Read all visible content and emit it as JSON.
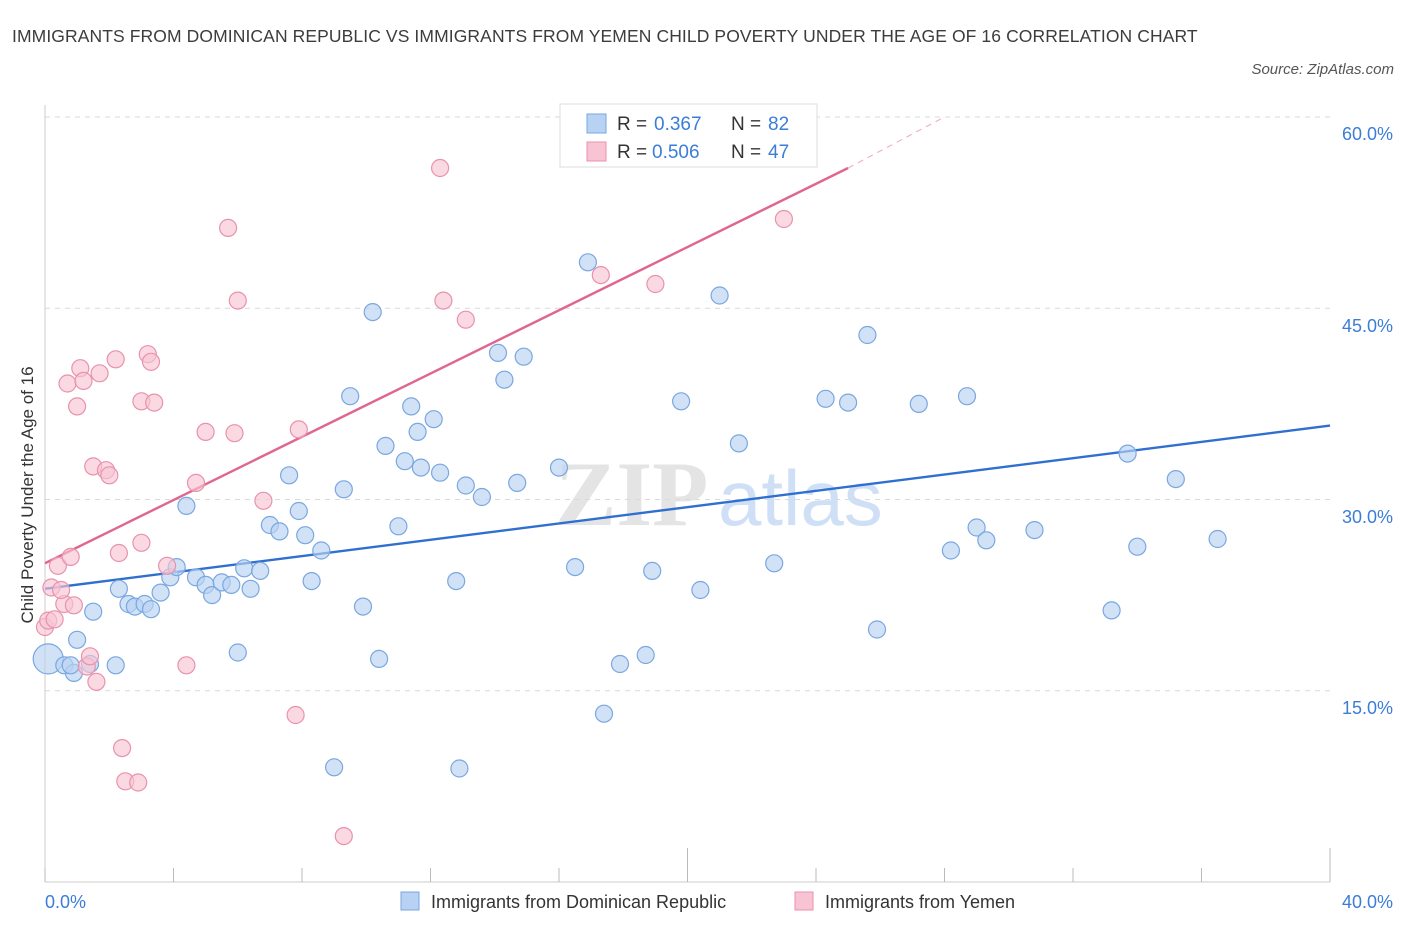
{
  "title": "IMMIGRANTS FROM DOMINICAN REPUBLIC VS IMMIGRANTS FROM YEMEN CHILD POVERTY UNDER THE AGE OF 16 CORRELATION CHART",
  "source": "Source: ZipAtlas.com",
  "watermark": {
    "zip": "ZIP",
    "atlas": "atlas"
  },
  "colors": {
    "blue_fill": "#b8d2f3",
    "blue_stroke": "#7aa7e0",
    "blue_line": "#2f6fd0",
    "pink_fill": "#f8c4d3",
    "pink_stroke": "#e892ad",
    "pink_line": "#e06690",
    "grid": "#d9d9d9",
    "axis_text": "#3b7dd8"
  },
  "legend": {
    "series": [
      {
        "r_label": "R =",
        "r_value": "0.367",
        "n_label": "N =",
        "n_value": "82"
      },
      {
        "r_label": "R =",
        "r_value": "0.506",
        "n_label": "N =",
        "n_value": "47"
      }
    ]
  },
  "chart_data": {
    "type": "scatter",
    "title": "IMMIGRANTS FROM DOMINICAN REPUBLIC VS IMMIGRANTS FROM YEMEN CHILD POVERTY UNDER THE AGE OF 16 CORRELATION CHART",
    "xlabel": "",
    "ylabel": "Child Poverty Under the Age of 16",
    "xlim": [
      0,
      40
    ],
    "ylim": [
      0,
      60
    ],
    "x_tick_labels": [
      "0.0%",
      "40.0%"
    ],
    "y_ticks": [
      15,
      30,
      45,
      60
    ],
    "y_tick_labels": [
      "15.0%",
      "30.0%",
      "45.0%",
      "60.0%"
    ],
    "legend_position": "top-center",
    "series": [
      {
        "name": "Immigrants from Dominican Republic",
        "R": 0.367,
        "N": 82,
        "trend": {
          "x": [
            0,
            40
          ],
          "y": [
            23.0,
            35.8
          ]
        },
        "points": [
          [
            0.1,
            17.5
          ],
          [
            0.6,
            17.0
          ],
          [
            0.9,
            16.4
          ],
          [
            1.0,
            19.0
          ],
          [
            1.4,
            17.1
          ],
          [
            2.2,
            17.0
          ],
          [
            1.5,
            21.2
          ],
          [
            2.3,
            23.0
          ],
          [
            2.6,
            21.8
          ],
          [
            2.8,
            21.6
          ],
          [
            3.1,
            21.8
          ],
          [
            3.3,
            21.4
          ],
          [
            3.6,
            22.7
          ],
          [
            3.9,
            23.9
          ],
          [
            4.1,
            24.7
          ],
          [
            4.4,
            29.5
          ],
          [
            4.7,
            23.9
          ],
          [
            5.0,
            23.3
          ],
          [
            5.2,
            22.5
          ],
          [
            5.5,
            23.5
          ],
          [
            5.8,
            23.3
          ],
          [
            6.0,
            18.0
          ],
          [
            6.2,
            24.6
          ],
          [
            6.4,
            23.0
          ],
          [
            6.7,
            24.4
          ],
          [
            7.0,
            28.0
          ],
          [
            7.3,
            27.5
          ],
          [
            7.6,
            31.9
          ],
          [
            7.9,
            29.1
          ],
          [
            8.1,
            27.2
          ],
          [
            8.3,
            23.6
          ],
          [
            8.6,
            26.0
          ],
          [
            9.0,
            9.0
          ],
          [
            9.3,
            30.8
          ],
          [
            9.5,
            38.1
          ],
          [
            9.9,
            21.6
          ],
          [
            10.2,
            44.7
          ],
          [
            10.4,
            17.5
          ],
          [
            10.6,
            34.2
          ],
          [
            11.0,
            27.9
          ],
          [
            11.2,
            33.0
          ],
          [
            11.4,
            37.3
          ],
          [
            11.6,
            35.3
          ],
          [
            11.7,
            32.5
          ],
          [
            12.1,
            36.3
          ],
          [
            12.3,
            32.1
          ],
          [
            12.8,
            23.6
          ],
          [
            12.9,
            8.9
          ],
          [
            13.1,
            31.1
          ],
          [
            13.6,
            30.2
          ],
          [
            14.1,
            41.5
          ],
          [
            14.3,
            39.4
          ],
          [
            14.7,
            31.3
          ],
          [
            14.9,
            41.2
          ],
          [
            16.0,
            32.5
          ],
          [
            16.5,
            24.7
          ],
          [
            16.9,
            48.6
          ],
          [
            17.4,
            13.2
          ],
          [
            17.9,
            17.1
          ],
          [
            18.7,
            17.8
          ],
          [
            18.9,
            24.4
          ],
          [
            19.8,
            37.7
          ],
          [
            20.4,
            22.9
          ],
          [
            21.0,
            46.0
          ],
          [
            21.6,
            34.4
          ],
          [
            22.7,
            25.0
          ],
          [
            24.3,
            37.9
          ],
          [
            25.0,
            37.6
          ],
          [
            25.6,
            42.9
          ],
          [
            25.9,
            19.8
          ],
          [
            27.2,
            37.5
          ],
          [
            28.2,
            26.0
          ],
          [
            28.7,
            38.1
          ],
          [
            29.0,
            27.8
          ],
          [
            29.3,
            26.8
          ],
          [
            30.8,
            27.6
          ],
          [
            33.2,
            21.3
          ],
          [
            33.7,
            33.6
          ],
          [
            34.0,
            26.3
          ],
          [
            35.2,
            31.6
          ],
          [
            36.5,
            26.9
          ],
          [
            0.8,
            17.0
          ]
        ]
      },
      {
        "name": "Immigrants from Yemen",
        "R": 0.506,
        "N": 47,
        "trend": {
          "x": [
            0,
            25
          ],
          "y": [
            25.0,
            56.0
          ]
        },
        "trend_dashed": {
          "x": [
            25,
            28
          ],
          "y": [
            56.0,
            60.0
          ]
        },
        "points": [
          [
            0.0,
            20.0
          ],
          [
            0.1,
            20.5
          ],
          [
            0.2,
            23.1
          ],
          [
            0.3,
            20.6
          ],
          [
            0.4,
            24.8
          ],
          [
            0.6,
            21.8
          ],
          [
            0.7,
            39.1
          ],
          [
            0.8,
            25.5
          ],
          [
            0.9,
            21.7
          ],
          [
            1.0,
            37.3
          ],
          [
            1.1,
            40.3
          ],
          [
            1.2,
            39.3
          ],
          [
            1.3,
            16.9
          ],
          [
            1.4,
            17.7
          ],
          [
            1.5,
            32.6
          ],
          [
            1.7,
            39.9
          ],
          [
            1.9,
            32.3
          ],
          [
            2.0,
            31.9
          ],
          [
            2.2,
            41.0
          ],
          [
            2.3,
            25.8
          ],
          [
            2.4,
            10.5
          ],
          [
            2.5,
            7.9
          ],
          [
            2.9,
            7.8
          ],
          [
            3.0,
            26.6
          ],
          [
            3.0,
            37.7
          ],
          [
            3.2,
            41.4
          ],
          [
            3.3,
            40.8
          ],
          [
            3.4,
            37.6
          ],
          [
            3.8,
            24.8
          ],
          [
            4.4,
            17.0
          ],
          [
            4.7,
            31.3
          ],
          [
            5.0,
            35.3
          ],
          [
            5.7,
            51.3
          ],
          [
            5.9,
            35.2
          ],
          [
            6.0,
            45.6
          ],
          [
            6.8,
            29.9
          ],
          [
            7.8,
            13.1
          ],
          [
            7.9,
            35.5
          ],
          [
            9.3,
            3.6
          ],
          [
            12.3,
            56.0
          ],
          [
            12.4,
            45.6
          ],
          [
            13.1,
            44.1
          ],
          [
            17.3,
            47.6
          ],
          [
            19.0,
            46.9
          ],
          [
            23.0,
            52.0
          ],
          [
            0.5,
            22.9
          ],
          [
            1.6,
            15.7
          ]
        ]
      }
    ]
  },
  "bottom_legend": {
    "dominican": "Immigrants from Dominican Republic",
    "yemen": "Immigrants from Yemen"
  }
}
